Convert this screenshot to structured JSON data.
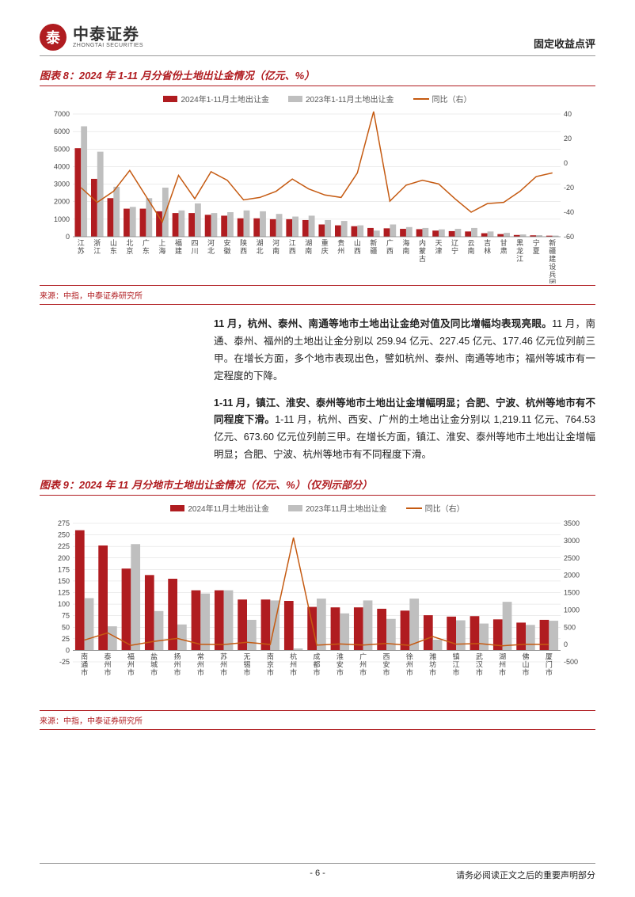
{
  "header": {
    "logo_cn": "中泰证券",
    "logo_en": "ZHONGTAI SECURITIES",
    "logo_glyph": "泰",
    "doc_type": "固定收益点评"
  },
  "chart8": {
    "title": "图表 8：2024 年 1-11 月分省份土地出让金情况（亿元、%）",
    "type": "bar+line",
    "legend": {
      "series1": "2024年1-11月土地出让金",
      "series2": "2023年1-11月土地出让金",
      "series3": "同比（右）"
    },
    "colors": {
      "series1": "#b01c20",
      "series2": "#bfbfbf",
      "series3": "#c55a11",
      "grid": "#d9d9d9",
      "axis": "#808080",
      "background": "#ffffff"
    },
    "y_left": {
      "min": 0,
      "max": 7000,
      "step": 1000
    },
    "y_right": {
      "min": -60,
      "max": 40,
      "step": 20
    },
    "bar_width": 0.38,
    "line_width": 1.5,
    "label_fontsize": 9,
    "categories": [
      "江苏",
      "浙江",
      "山东",
      "北京",
      "广东",
      "上海",
      "福建",
      "四川",
      "河北",
      "安徽",
      "陕西",
      "湖北",
      "河南",
      "江西",
      "湖南",
      "重庆",
      "贵州",
      "山西",
      "新疆",
      "广西",
      "海南",
      "内蒙古",
      "天津",
      "辽宁",
      "云南",
      "吉林",
      "甘肃",
      "黑龙江",
      "宁夏",
      "新疆建设兵团"
    ],
    "values_2024": [
      5050,
      3300,
      2200,
      1600,
      1600,
      1450,
      1350,
      1350,
      1250,
      1200,
      1050,
      1050,
      1000,
      1000,
      950,
      700,
      650,
      600,
      500,
      480,
      450,
      430,
      350,
      320,
      300,
      200,
      150,
      100,
      80,
      60
    ],
    "values_2023": [
      6300,
      4850,
      2850,
      1700,
      2200,
      2800,
      1500,
      1900,
      1350,
      1400,
      1500,
      1450,
      1300,
      1150,
      1200,
      950,
      900,
      650,
      350,
      700,
      550,
      500,
      420,
      450,
      500,
      300,
      220,
      130,
      90,
      65
    ],
    "yoy": [
      -20,
      -32,
      -23,
      -6,
      -27,
      -48,
      -10,
      -29,
      -7,
      -14,
      -30,
      -28,
      -23,
      -13,
      -21,
      -26,
      -28,
      -8,
      42,
      -31,
      -18,
      -14,
      -17,
      -29,
      -40,
      -33,
      -32,
      -23,
      -11,
      -8
    ],
    "source": "来源：中指，中泰证券研究所"
  },
  "body": {
    "p1_bold": "11 月，杭州、泰州、南通等地市土地出让金绝对值及同比增幅均表现亮眼。",
    "p1_rest": "11 月，南通、泰州、福州的土地出让金分别以 259.94 亿元、227.45 亿元、177.46 亿元位列前三甲。在增长方面，多个地市表现出色，譬如杭州、泰州、南通等地市；福州等城市有一定程度的下降。",
    "p2_bold": "1-11 月，镇江、淮安、泰州等地市土地出让金增幅明显；合肥、宁波、杭州等地市有不同程度下滑。",
    "p2_rest": "1-11 月，杭州、西安、广州的土地出让金分别以 1,219.11 亿元、764.53 亿元、673.60 亿元位列前三甲。在增长方面，镇江、淮安、泰州等地市土地出让金增幅明显；合肥、宁波、杭州等地市有不同程度下滑。"
  },
  "chart9": {
    "title": "图表 9：2024 年 11 月分地市土地出让金情况（亿元、%）（仅列示部分）",
    "type": "bar+line",
    "legend": {
      "series1": "2024年11月土地出让金",
      "series2": "2023年11月土地出让金",
      "series3": "同比（右）"
    },
    "colors": {
      "series1": "#b01c20",
      "series2": "#bfbfbf",
      "series3": "#c55a11",
      "grid": "#d9d9d9",
      "axis": "#808080",
      "background": "#ffffff"
    },
    "y_left": {
      "min": -25,
      "max": 275,
      "step": 25
    },
    "y_right": {
      "min": -500,
      "max": 3500,
      "step": 500
    },
    "bar_width": 0.4,
    "line_width": 1.5,
    "label_fontsize": 9,
    "categories": [
      "南通市",
      "泰州市",
      "福州市",
      "盐城市",
      "扬州市",
      "常州市",
      "苏州市",
      "无锡市",
      "南京市",
      "杭州市",
      "成都市",
      "淮安市",
      "广州市",
      "西安市",
      "徐州市",
      "潍坊市",
      "镇江市",
      "武汉市",
      "湖州市",
      "佛山市",
      "厦门市"
    ],
    "values_2024": [
      260,
      227,
      177,
      163,
      155,
      130,
      130,
      110,
      110,
      107,
      94,
      93,
      93,
      90,
      86,
      76,
      73,
      74,
      67,
      60,
      66
    ],
    "values_2023": [
      113,
      52,
      230,
      85,
      56,
      123,
      130,
      66,
      108,
      4,
      112,
      80,
      108,
      68,
      112,
      23,
      65,
      58,
      105,
      55,
      64
    ],
    "yoy": [
      130,
      337,
      -23,
      92,
      177,
      6,
      0,
      67,
      2,
      3088,
      -16,
      16,
      -14,
      32,
      -23,
      230,
      12,
      28,
      -36,
      9,
      3
    ],
    "source": "来源：中指，中泰证券研究所"
  },
  "footer": {
    "page": "- 6 -",
    "disclaimer": "请务必阅读正文之后的重要声明部分"
  }
}
